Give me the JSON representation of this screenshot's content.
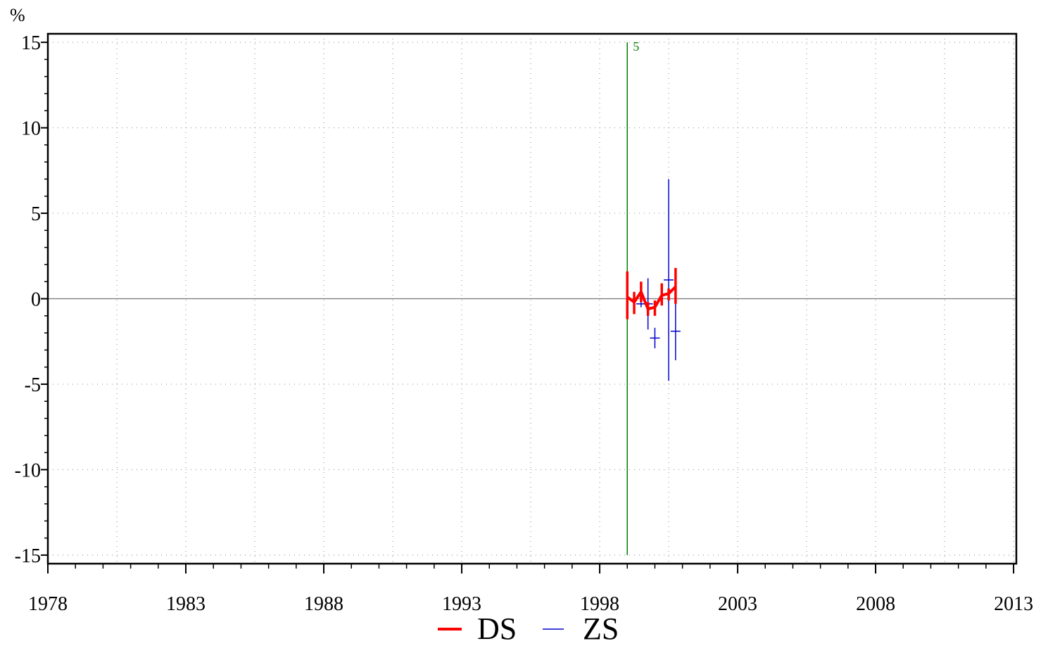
{
  "chart_data": {
    "type": "line",
    "ylabel": "%",
    "xlabel": "",
    "xlim": [
      1978,
      2013.1
    ],
    "ylim": [
      -15.5,
      15.5
    ],
    "x_ticks": [
      "1978",
      "1983",
      "1988",
      "1993",
      "1998",
      "2003",
      "2008",
      "2013"
    ],
    "y_ticks": [
      "15",
      "10",
      "5",
      "0",
      "-5",
      "-10",
      "-15"
    ],
    "grid": true,
    "zero_line": true,
    "legend_position": "bottom-center",
    "vline": {
      "x": 1999.0,
      "label": "5",
      "color": "#008000",
      "from": -15,
      "to": 15
    },
    "series": [
      {
        "name": "DS",
        "color": "#ff0000",
        "style": "thick line with error bars",
        "points": [
          {
            "x": 1999.0,
            "y": 0.1,
            "lo": -1.2,
            "hi": 1.6
          },
          {
            "x": 1999.25,
            "y": -0.2,
            "lo": -0.9,
            "hi": 0.4
          },
          {
            "x": 1999.5,
            "y": 0.4,
            "lo": -0.2,
            "hi": 1.0
          },
          {
            "x": 1999.75,
            "y": -0.6,
            "lo": -1.0,
            "hi": -0.2
          },
          {
            "x": 2000.0,
            "y": -0.5,
            "lo": -1.0,
            "hi": -0.1
          },
          {
            "x": 2000.25,
            "y": 0.2,
            "lo": -0.4,
            "hi": 0.9
          },
          {
            "x": 2000.5,
            "y": 0.3,
            "lo": -0.1,
            "hi": 0.6
          },
          {
            "x": 2000.75,
            "y": 0.7,
            "lo": -0.3,
            "hi": 1.8
          }
        ]
      },
      {
        "name": "ZS",
        "color": "#0000cc",
        "style": "crosses with error bars",
        "points": [
          {
            "x": 1999.5,
            "y": -0.3,
            "lo": -0.5,
            "hi": -0.1
          },
          {
            "x": 1999.75,
            "y": -0.3,
            "lo": -1.8,
            "hi": 1.2
          },
          {
            "x": 2000.0,
            "y": -2.3,
            "lo": -2.9,
            "hi": -1.7
          },
          {
            "x": 2000.5,
            "y": 1.1,
            "lo": -4.8,
            "hi": 7.0
          },
          {
            "x": 2000.75,
            "y": -1.9,
            "lo": -3.6,
            "hi": -0.2
          }
        ]
      }
    ]
  }
}
